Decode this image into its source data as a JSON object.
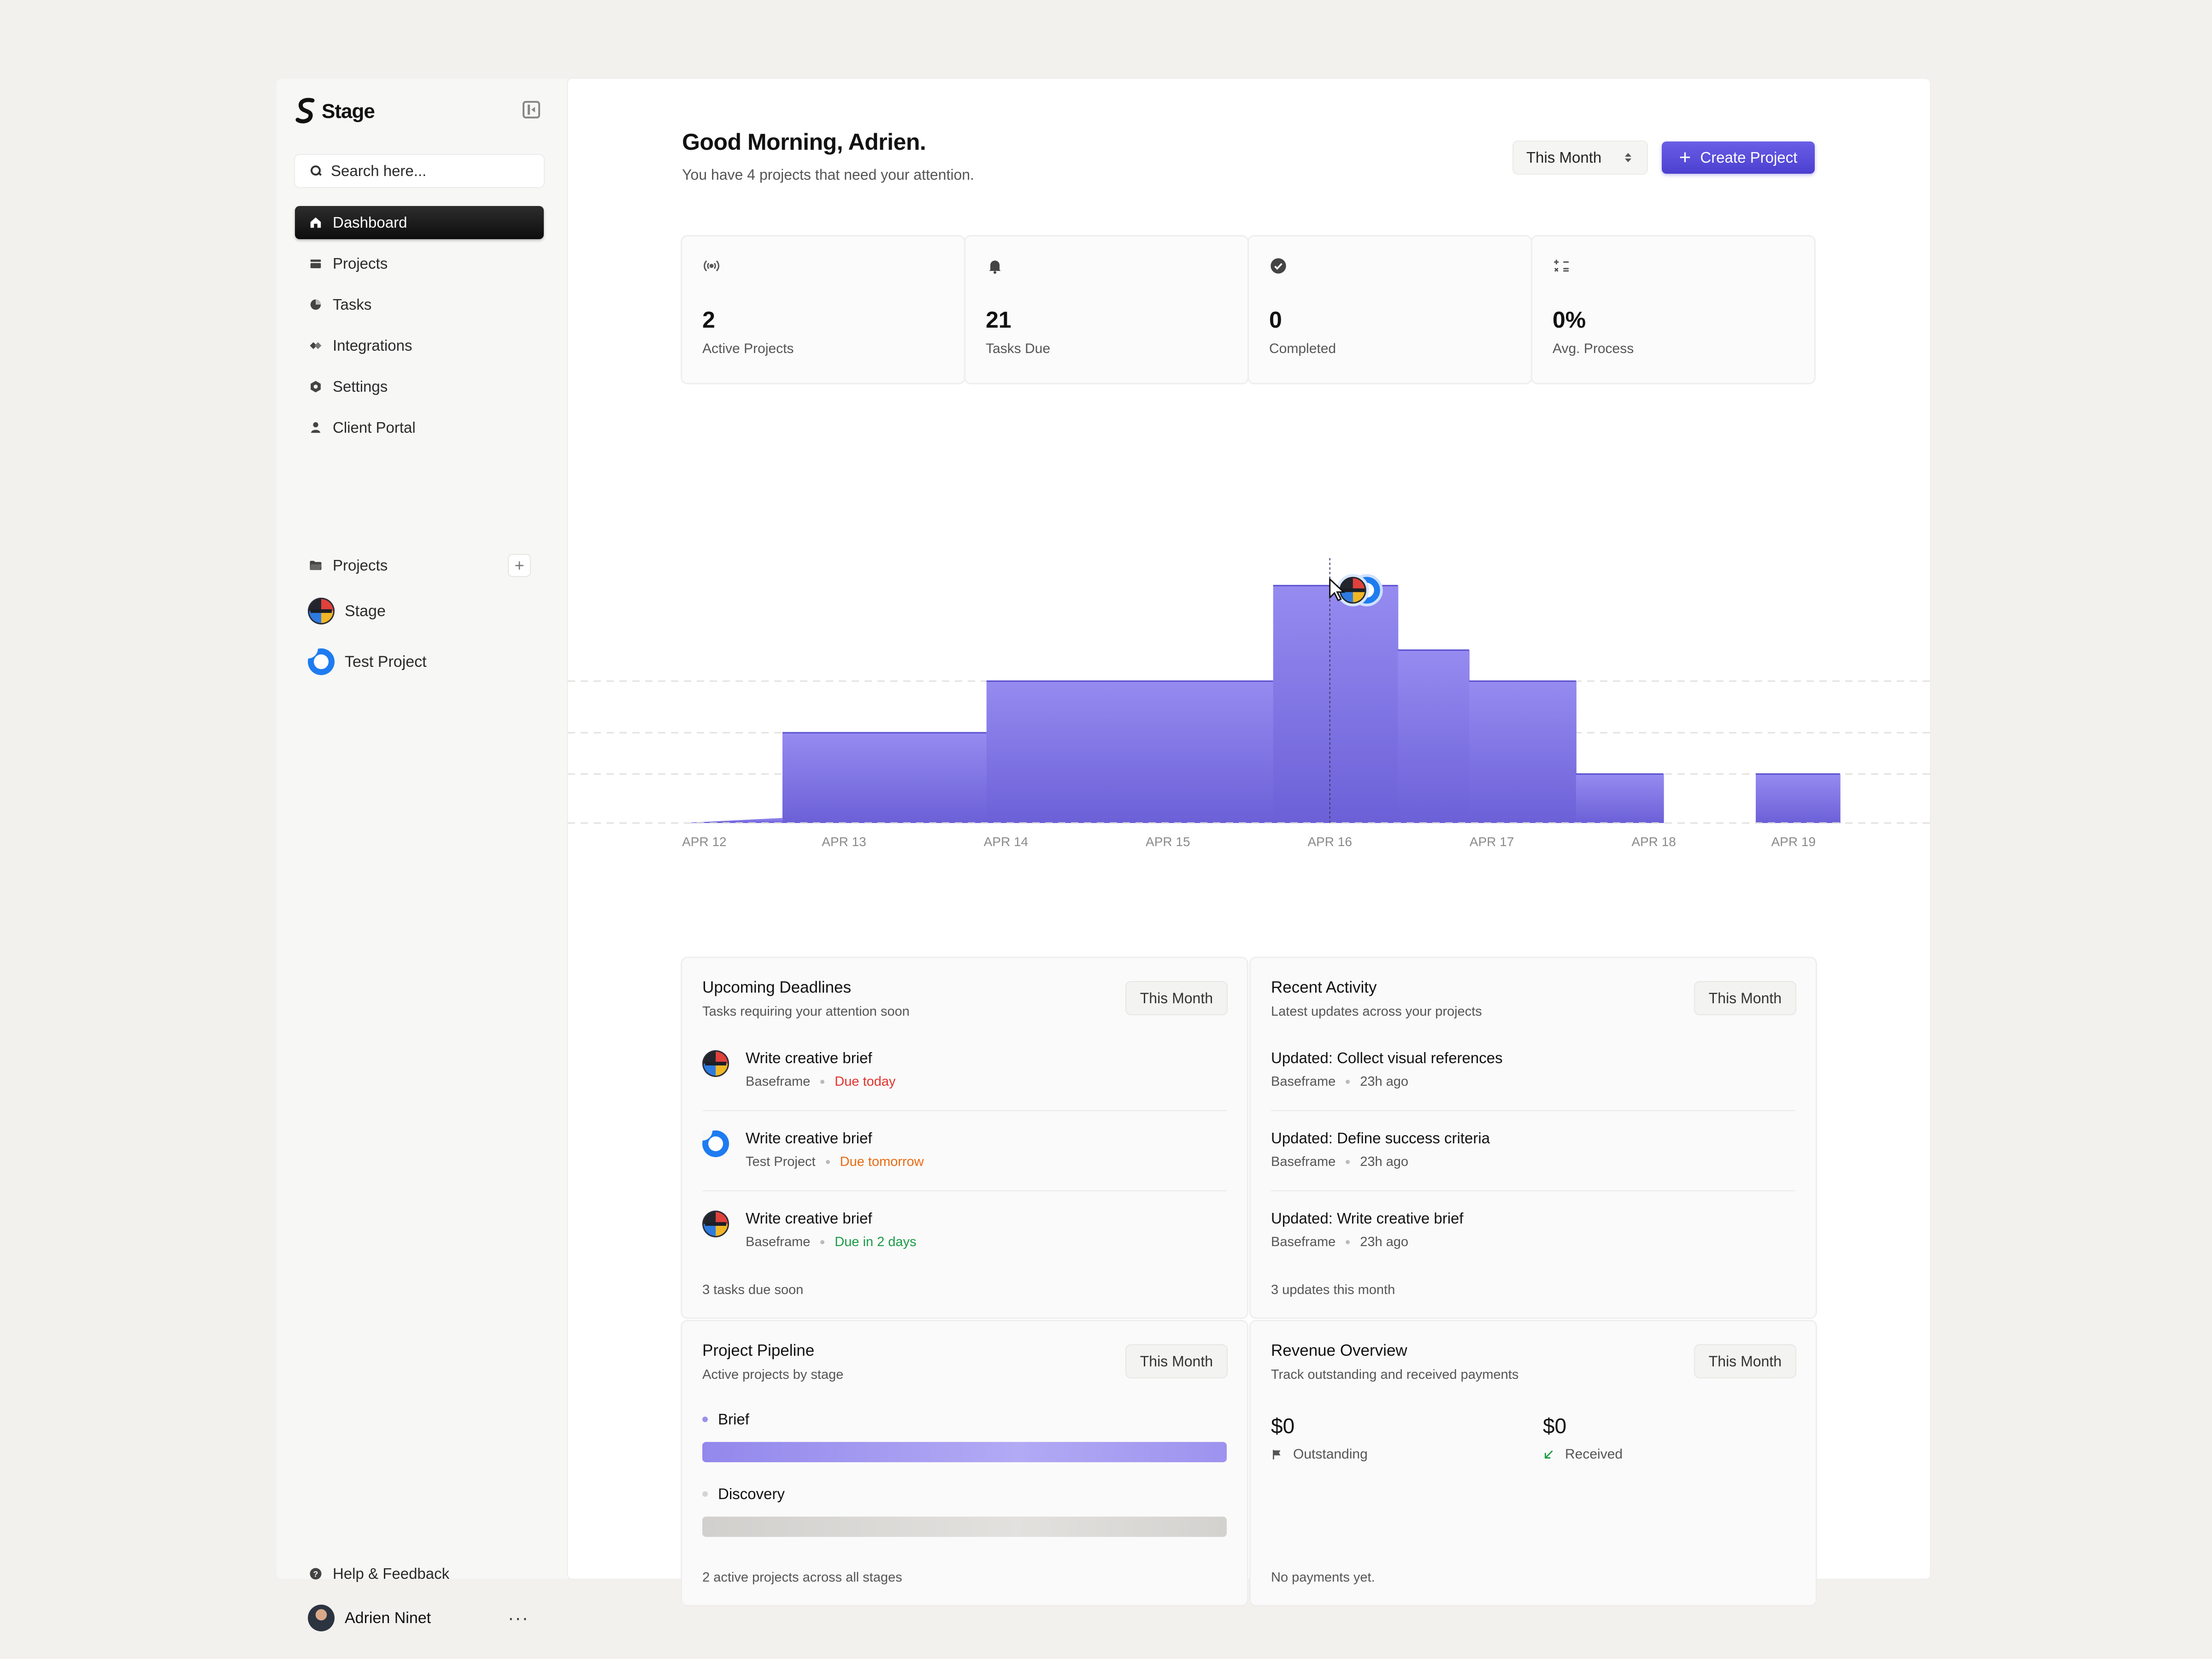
{
  "sidebar": {
    "brand": "Stage",
    "search_placeholder": "Search here...",
    "nav": [
      {
        "label": "Dashboard",
        "icon": "home-icon",
        "active": true
      },
      {
        "label": "Projects",
        "icon": "stack-icon"
      },
      {
        "label": "Tasks",
        "icon": "pie-icon"
      },
      {
        "label": "Integrations",
        "icon": "integrations-icon"
      },
      {
        "label": "Settings",
        "icon": "gear-icon"
      },
      {
        "label": "Client Portal",
        "icon": "person-icon"
      }
    ],
    "projects_heading": "Projects",
    "projects": [
      {
        "label": "Stage"
      },
      {
        "label": "Test Project"
      }
    ],
    "help_label": "Help & Feedback",
    "user_name": "Adrien Ninet"
  },
  "header": {
    "greeting": "Good Morning, Adrien.",
    "subtitle": "You have 4 projects that need your attention.",
    "period_select": "This Month",
    "create_label": "Create Project",
    "accent_color": "#5548d9"
  },
  "stats": [
    {
      "value": "2",
      "label": "Active Projects",
      "icon": "broadcast-icon"
    },
    {
      "value": "21",
      "label": "Tasks Due",
      "icon": "bell-icon"
    },
    {
      "value": "0",
      "label": "Completed",
      "icon": "check-circle-icon"
    },
    {
      "value": "0%",
      "label": "Avg. Process",
      "icon": "calculator-icon"
    }
  ],
  "chart_data": {
    "type": "area",
    "categories": [
      "APR 12",
      "APR 13",
      "APR 14",
      "APR 15",
      "APR 16",
      "APR 17",
      "APR 18",
      "APR 19"
    ],
    "steps": [
      {
        "x_start": 0.0,
        "x_end": 0.62,
        "value": 0.2
      },
      {
        "x_start": 0.62,
        "x_end": 1.88,
        "value": 3.5
      },
      {
        "x_start": 1.88,
        "x_end": 3.65,
        "value": 5.5
      },
      {
        "x_start": 3.65,
        "x_end": 4.42,
        "value": 9.2
      },
      {
        "x_start": 4.42,
        "x_end": 4.86,
        "value": 6.7
      },
      {
        "x_start": 4.86,
        "x_end": 5.52,
        "value": 5.5
      },
      {
        "x_start": 5.52,
        "x_end": 6.06,
        "value": 1.9
      },
      {
        "x_start": 6.06,
        "x_end": 6.63,
        "value": 0
      },
      {
        "x_start": 6.63,
        "x_end": 7.15,
        "value": 1.9
      }
    ],
    "ylim": [
      0,
      10
    ],
    "grid": true,
    "fill_color": "#7b6ee2",
    "hover_x": 4.0
  },
  "deadlines": {
    "title": "Upcoming Deadlines",
    "subtitle": "Tasks requiring your attention soon",
    "filter": "This Month",
    "items": [
      {
        "title": "Write creative brief",
        "project": "Baseframe",
        "due": "Due today",
        "avatar": "stage"
      },
      {
        "title": "Write creative brief",
        "project": "Test Project",
        "due": "Due tomorrow",
        "avatar": "test"
      },
      {
        "title": "Write creative brief",
        "project": "Baseframe",
        "due": "Due in 2 days",
        "avatar": "stage"
      }
    ],
    "footer": "3 tasks due soon"
  },
  "activity": {
    "title": "Recent Activity",
    "subtitle": "Latest updates across your projects",
    "filter": "This Month",
    "items": [
      {
        "title": "Updated: Collect visual references",
        "project": "Baseframe",
        "time": "23h ago"
      },
      {
        "title": "Updated: Define success criteria",
        "project": "Baseframe",
        "time": "23h ago"
      },
      {
        "title": "Updated: Write creative brief",
        "project": "Baseframe",
        "time": "23h ago"
      }
    ],
    "footer": "3 updates this month"
  },
  "pipeline": {
    "title": "Project Pipeline",
    "subtitle": "Active projects by stage",
    "filter": "This Month",
    "stages": [
      {
        "label": "Brief",
        "fill": 1.0,
        "color": "#9b91ee"
      },
      {
        "label": "Discovery",
        "fill": 1.0,
        "color": "#d6d4d1"
      }
    ],
    "footer": "2 active projects across all stages"
  },
  "revenue": {
    "title": "Revenue Overview",
    "subtitle": "Track outstanding and received payments",
    "filter": "This Month",
    "outstanding_value": "$0",
    "outstanding_label": "Outstanding",
    "received_value": "$0",
    "received_label": "Received",
    "footer": "No payments yet."
  }
}
